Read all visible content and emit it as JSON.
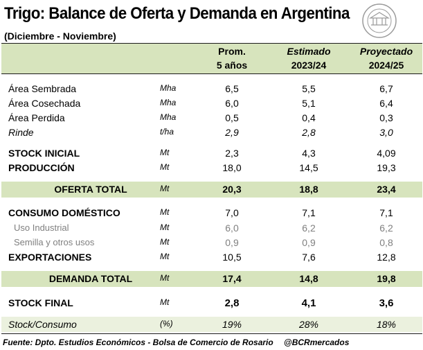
{
  "title": "Trigo: Balance de Oferta y Demanda en Argentina",
  "subtitle": "(Diciembre - Noviembre)",
  "headers": {
    "prom_line1": "Prom.",
    "prom_line2": "5 años",
    "est_line1": "Estimado",
    "est_line2": "2023/24",
    "proy_line1": "Proyectado",
    "proy_line2": "2024/25"
  },
  "rows": [
    {
      "label": "Área Sembrada",
      "unit": "Mha",
      "prom": "6,5",
      "est": "5,5",
      "proy": "6,7"
    },
    {
      "label": "Área Cosechada",
      "unit": "Mha",
      "prom": "6,0",
      "est": "5,1",
      "proy": "6,4"
    },
    {
      "label": "Área Perdida",
      "unit": "Mha",
      "prom": "0,5",
      "est": "0,4",
      "proy": "0,3"
    },
    {
      "label": "Rinde",
      "unit": "t/ha",
      "prom": "2,9",
      "est": "2,8",
      "proy": "3,0"
    },
    {
      "label": "STOCK INICIAL",
      "unit": "Mt",
      "prom": "2,3",
      "est": "4,3",
      "proy": "4,09"
    },
    {
      "label": "PRODUCCIÓN",
      "unit": "Mt",
      "prom": "18,0",
      "est": "14,5",
      "proy": "19,3"
    },
    {
      "label": "OFERTA TOTAL",
      "unit": "Mt",
      "prom": "20,3",
      "est": "18,8",
      "proy": "23,4"
    },
    {
      "label": "CONSUMO DOMÉSTICO",
      "unit": "Mt",
      "prom": "7,0",
      "est": "7,1",
      "proy": "7,1"
    },
    {
      "label": "Uso Industrial",
      "unit": "Mt",
      "prom": "6,0",
      "est": "6,2",
      "proy": "6,2"
    },
    {
      "label": "Semilla y otros usos",
      "unit": "Mt",
      "prom": "0,9",
      "est": "0,9",
      "proy": "0,8"
    },
    {
      "label": "EXPORTACIONES",
      "unit": "Mt",
      "prom": "10,5",
      "est": "7,6",
      "proy": "12,8"
    },
    {
      "label": "DEMANDA TOTAL",
      "unit": "Mt",
      "prom": "17,4",
      "est": "14,8",
      "proy": "19,8"
    },
    {
      "label": "STOCK FINAL",
      "unit": "Mt",
      "prom": "2,8",
      "est": "4,1",
      "proy": "3,6"
    },
    {
      "label": "Stock/Consumo",
      "unit": "(%)",
      "prom": "19%",
      "est": "28%",
      "proy": "18%"
    }
  ],
  "footer": {
    "source": "Fuente: Dpto. Estudios Económicos - Bolsa de Comercio de Rosario",
    "handle": "@BCRmercados"
  },
  "colors": {
    "band_green": "#d7e4bd",
    "band_light": "#ebf1de",
    "muted_gray": "#7f7f7f"
  }
}
